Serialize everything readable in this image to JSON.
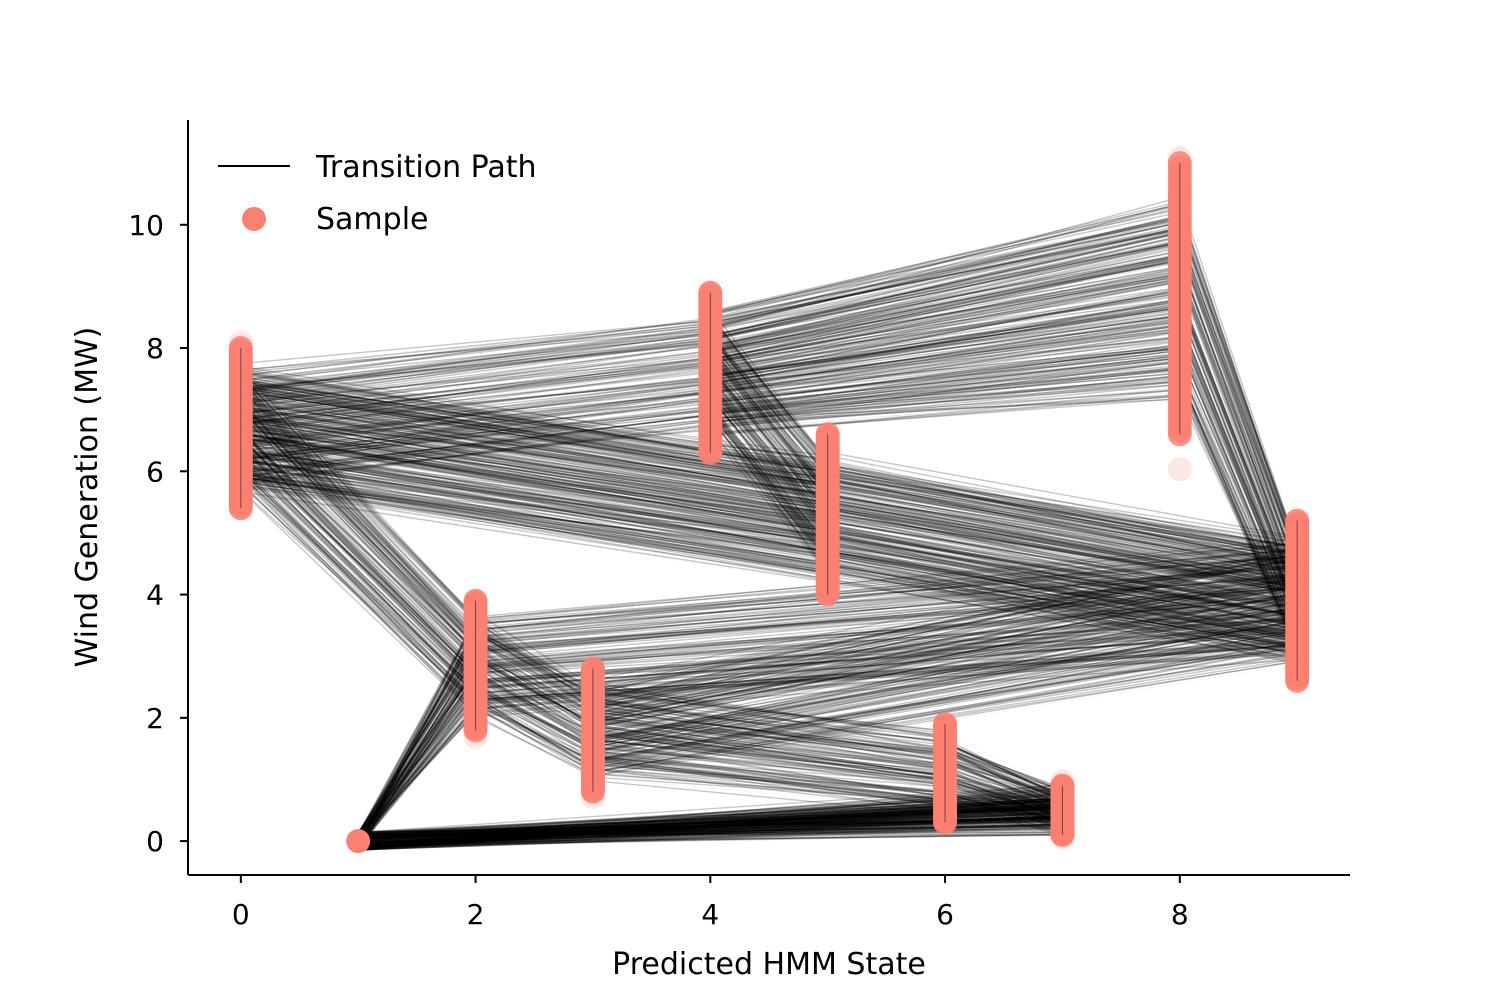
{
  "chart_data": {
    "type": "scatter",
    "title": "",
    "xlabel": "Predicted HMM State",
    "ylabel": "Wind Generation (MW)",
    "xlim": [
      -0.45,
      9.45
    ],
    "ylim": [
      -0.55,
      11.7
    ],
    "x_ticks": [
      0,
      2,
      4,
      6,
      8
    ],
    "y_ticks": [
      0,
      2,
      4,
      6,
      8,
      10
    ],
    "grid": false,
    "legend_position": "top-left",
    "colors": {
      "sample": "#fa8072",
      "path": "#000000",
      "axis": "#000000"
    },
    "series": [
      {
        "name": "Transition Path",
        "kind": "line"
      },
      {
        "name": "Sample",
        "kind": "scatter"
      }
    ],
    "states": [
      {
        "state": 0,
        "min": 5.4,
        "max": 8.0,
        "samples_min": 5.3,
        "samples_max": 8.1
      },
      {
        "state": 1,
        "min": 0.0,
        "max": 0.0,
        "samples_min": 0.0,
        "samples_max": 0.0
      },
      {
        "state": 2,
        "min": 1.8,
        "max": 3.9,
        "samples_min": 1.6,
        "samples_max": 4.0
      },
      {
        "state": 3,
        "min": 0.8,
        "max": 2.8,
        "samples_min": 0.7,
        "samples_max": 2.9
      },
      {
        "state": 4,
        "min": 6.3,
        "max": 8.9,
        "samples_min": 6.2,
        "samples_max": 9.1
      },
      {
        "state": 5,
        "min": 4.0,
        "max": 6.6,
        "samples_min": 3.9,
        "samples_max": 6.8
      },
      {
        "state": 6,
        "min": 0.3,
        "max": 1.9,
        "samples_min": 0.2,
        "samples_max": 2.0
      },
      {
        "state": 7,
        "min": 0.1,
        "max": 0.9,
        "samples_min": 0.05,
        "samples_max": 1.0
      },
      {
        "state": 8,
        "min": 6.6,
        "max": 11.0,
        "samples_min": 5.9,
        "samples_max": 11.1
      },
      {
        "state": 9,
        "min": 2.6,
        "max": 5.2,
        "samples_min": 2.4,
        "samples_max": 5.4
      }
    ],
    "transitions": [
      {
        "from": 0,
        "to": 2
      },
      {
        "from": 2,
        "to": 3
      },
      {
        "from": 3,
        "to": 6
      },
      {
        "from": 6,
        "to": 7
      },
      {
        "from": 7,
        "to": 1
      },
      {
        "from": 1,
        "to": 7
      },
      {
        "from": 2,
        "to": 9
      },
      {
        "from": 9,
        "to": 0
      },
      {
        "from": 0,
        "to": 4
      },
      {
        "from": 4,
        "to": 8
      },
      {
        "from": 8,
        "to": 4
      },
      {
        "from": 4,
        "to": 5
      },
      {
        "from": 5,
        "to": 9
      },
      {
        "from": 0,
        "to": 5
      },
      {
        "from": 3,
        "to": 9
      },
      {
        "from": 1,
        "to": 2
      },
      {
        "from": 9,
        "to": 8
      }
    ]
  }
}
